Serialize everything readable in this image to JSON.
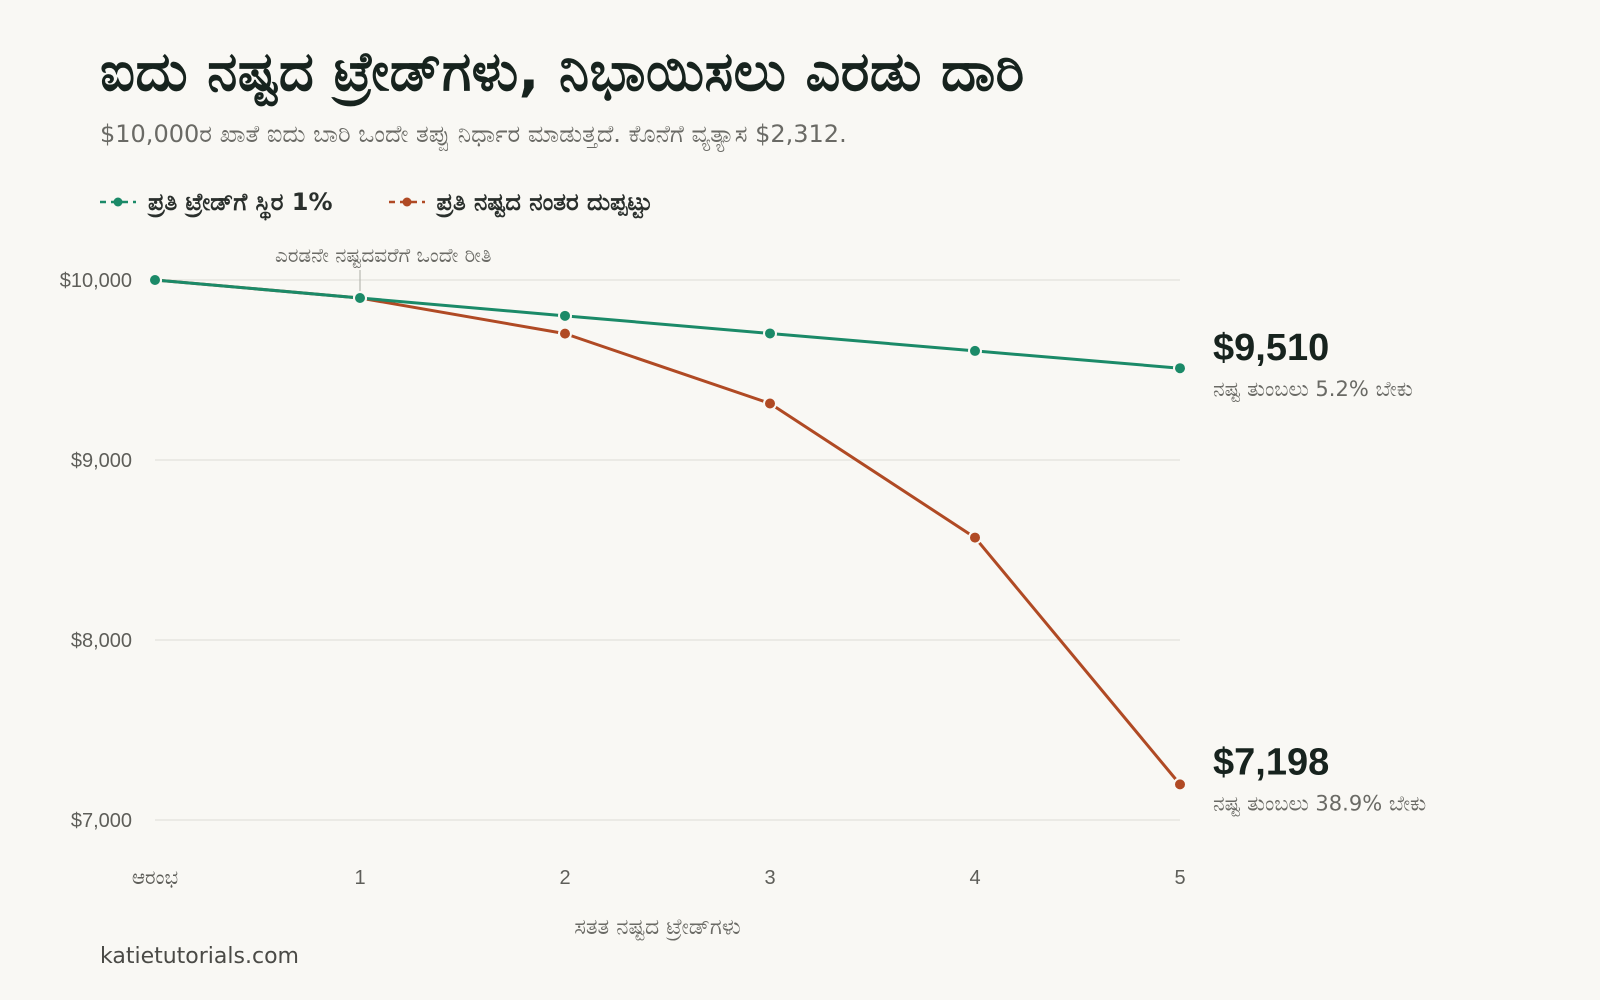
{
  "title": "ಐದು ನಷ್ಟದ ಟ್ರೇಡ್‌ಗಳು, ನಿಭಾಯಿಸಲು ಎರಡು ದಾರಿ",
  "subtitle": "$10,000ರ ಖಾತೆ ಐದು ಬಾರಿ ಒಂದೇ ತಪ್ಪು ನಿರ್ಧಾರ ಮಾಡುತ್ತದೆ. ಕೊನೆಗೆ ವ್ಯತ್ಯಾಸ $2,312.",
  "source": "katietutorials.com",
  "colors": {
    "fixed": "#1b8a68",
    "doubling": "#b04a24",
    "grid": "#e3e2dc",
    "background": "#f9f8f4"
  },
  "chart_data": {
    "type": "line",
    "categories": [
      "ಆರಂಭ",
      "1",
      "2",
      "3",
      "4",
      "5"
    ],
    "xlabel": "ಸತತ ನಷ್ಟದ ಟ್ರೇಡ್‌ಗಳು",
    "ylabel": "",
    "ylim": [
      7000,
      10000
    ],
    "yticks": [
      10000,
      9000,
      8000,
      7000
    ],
    "ytick_labels": [
      "$10,000",
      "$9,000",
      "$8,000",
      "$7,000"
    ],
    "grid": true,
    "legend_position": "top-left",
    "series": [
      {
        "name": "ಪ್ರತಿ ಟ್ರೇಡ್‌ಗೆ ಸ್ಥಿರ 1%",
        "values": [
          10000,
          9900,
          9801,
          9703,
          9606,
          9510
        ],
        "end_label": "$9,510",
        "end_note": "ನಷ್ಟ ತುಂಬಲು 5.2% ಬೇಕು"
      },
      {
        "name": "ಪ್ರತಿ ನಷ್ಟದ ನಂತರ ದುಪ್ಪಟ್ಟು",
        "values": [
          10000,
          9900,
          9702,
          9314,
          8569,
          7198
        ],
        "end_label": "$7,198",
        "end_note": "ನಷ್ಟ ತುಂಬಲು 38.9% ಬೇಕು"
      }
    ],
    "annotations": [
      {
        "text": "ಎರಡನೇ ನಷ್ಟದವರೆಗೆ ಒಂದೇ ರೀತಿ",
        "x": "1",
        "y": 9900
      }
    ]
  }
}
